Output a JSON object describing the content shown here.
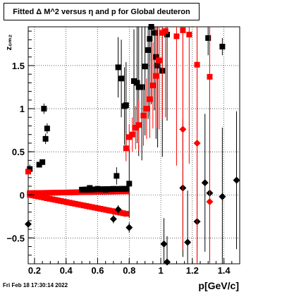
{
  "chart_data": {
    "type": "scatter",
    "title": "Fitted Δ M^2 versus η and p for Global deuteron",
    "xlabel": "p[GeV/c]",
    "ylabel": "z₀ₘ₂",
    "xlim": [
      0.16,
      1.5
    ],
    "ylim": [
      -0.8,
      1.95
    ],
    "xticks": [
      {
        "value": 0.2,
        "label": "0.2"
      },
      {
        "value": 0.4,
        "label": "0.4"
      },
      {
        "value": 0.6,
        "label": "0.6"
      },
      {
        "value": 0.8,
        "label": "0.8"
      },
      {
        "value": 1.0,
        "label": "1"
      },
      {
        "value": 1.2,
        "label": "1.2"
      },
      {
        "value": 1.4,
        "label": "1.4"
      }
    ],
    "yticks": [
      {
        "value": -0.5,
        "label": "−0.5"
      },
      {
        "value": 0,
        "label": "0"
      },
      {
        "value": 0.5,
        "label": "0.5"
      },
      {
        "value": 1,
        "label": "1"
      },
      {
        "value": 1.5,
        "label": "1.5"
      }
    ],
    "grid": true,
    "colors": {
      "black": "#000000",
      "red": "#ff0000"
    },
    "series": [
      {
        "marker": "square",
        "color": "#000000",
        "points": [
          [
            0.17,
            0.3,
            0.05
          ],
          [
            0.23,
            0.35,
            0.03
          ],
          [
            0.25,
            0.38,
            0.03
          ],
          [
            0.26,
            1.0,
            0.06
          ],
          [
            0.27,
            0.65,
            0.06
          ],
          [
            0.28,
            0.77,
            0.06
          ],
          [
            0.55,
            0.08,
            0.02
          ],
          [
            0.6,
            0.07,
            0.02
          ],
          [
            0.65,
            0.06,
            0.02
          ],
          [
            0.7,
            0.07,
            0.02
          ],
          [
            0.72,
            0.22,
            0.1
          ],
          [
            0.73,
            1.48,
            0.35
          ],
          [
            0.75,
            1.35,
            0.45
          ],
          [
            0.77,
            1.03,
            0.45
          ],
          [
            0.78,
            1.04,
            0.5
          ],
          [
            0.8,
            0.13,
            0.4
          ],
          [
            0.83,
            1.32,
            0.6
          ],
          [
            0.85,
            1.3,
            0.7
          ],
          [
            0.86,
            1.25,
            0.8
          ],
          [
            0.88,
            1.25,
            0.85
          ],
          [
            0.9,
            1.49,
            0.8
          ],
          [
            0.92,
            1.68,
            0.8
          ],
          [
            0.93,
            1.81,
            0.9
          ],
          [
            0.94,
            1.95,
            0.9
          ],
          [
            0.96,
            1.88,
            0.9
          ],
          [
            0.97,
            1.6,
            0.95
          ],
          [
            0.98,
            1.5,
            0.95
          ],
          [
            1.01,
            1.44,
            1.0
          ],
          [
            1.04,
            1.86,
            1.0
          ],
          [
            1.3,
            1.82,
            0.2
          ],
          [
            1.39,
            1.72,
            0.1
          ]
        ]
      },
      {
        "marker": "square",
        "color": "#ff0000",
        "points": [
          [
            0.16,
            0.27,
            0.03
          ],
          [
            0.78,
            0.54,
            0.15
          ],
          [
            0.8,
            0.67,
            0.15
          ],
          [
            0.82,
            0.7,
            0.2
          ],
          [
            0.84,
            0.78,
            0.25
          ],
          [
            0.86,
            0.81,
            0.3
          ],
          [
            0.89,
            0.92,
            0.35
          ],
          [
            0.91,
            1.0,
            0.35
          ],
          [
            0.93,
            1.11,
            0.45
          ],
          [
            0.95,
            1.27,
            0.5
          ],
          [
            0.97,
            1.38,
            0.6
          ],
          [
            0.99,
            1.56,
            0.8
          ],
          [
            1.01,
            1.88,
            1.0
          ],
          [
            1.03,
            1.9,
            1.0
          ],
          [
            1.1,
            1.84,
            1.5
          ],
          [
            1.14,
            1.91,
            1.5
          ],
          [
            1.18,
            1.86,
            1.5
          ],
          [
            1.23,
            1.51,
            1.5
          ],
          [
            1.31,
            1.37,
            1.5
          ]
        ]
      },
      {
        "marker": "diamond",
        "color": "#000000",
        "points": [
          [
            0.16,
            -0.34,
            0.03
          ],
          [
            0.7,
            -0.28,
            0.05
          ],
          [
            0.73,
            -0.17,
            0.05
          ],
          [
            0.8,
            -0.38,
            0.06
          ],
          [
            1.02,
            -0.57,
            0.3
          ],
          [
            1.04,
            -0.78,
            0.3
          ],
          [
            1.14,
            0.08,
            0.8
          ],
          [
            1.17,
            -0.55,
            0.6
          ],
          [
            1.23,
            -0.31,
            0.6
          ],
          [
            1.28,
            0.14,
            0.8
          ],
          [
            1.31,
            0.02,
            0.8
          ],
          [
            1.39,
            -0.02,
            0.8
          ],
          [
            1.48,
            0.17,
            0.8
          ]
        ]
      },
      {
        "marker": "diamond",
        "color": "#ff0000",
        "points": [
          [
            1.14,
            0.76,
            1.4
          ],
          [
            1.23,
            0.6,
            1.4
          ],
          [
            1.31,
            -0.08,
            1.4
          ]
        ]
      }
    ],
    "bands": [
      {
        "color": "#ff0000",
        "x": [
          0.17,
          0.78
        ],
        "y": [
          0.02,
          0.04
        ]
      },
      {
        "color": "#ff0000",
        "x": [
          0.17,
          0.78
        ],
        "y": [
          0.0,
          -0.22
        ]
      },
      {
        "color": "#000000",
        "x": [
          0.5,
          0.78
        ],
        "y": [
          0.06,
          0.07
        ]
      }
    ]
  },
  "footer": {
    "timestamp": "Fri Feb 18 17:30:14 2022"
  }
}
